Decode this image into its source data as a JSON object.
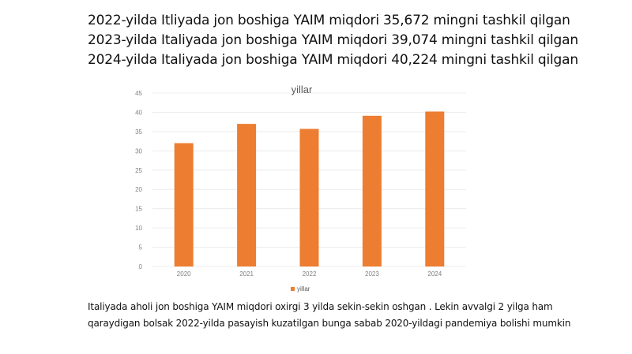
{
  "heading": {
    "line1": "2022-yilda Itliyada jon boshiga YAIM miqdori 35,672 mingni tashkil qilgan",
    "line2": "2023-yilda Italiyada jon boshiga YAIM miqdori 39,074 mingni tashkil qilgan",
    "line3": "2024-yilda Italiyada jon boshiga YAIM miqdori 40,224 mingni tashkil qilgan"
  },
  "chart_data": {
    "type": "bar",
    "title": "yillar",
    "categories": [
      "2020",
      "2021",
      "2022",
      "2023",
      "2024"
    ],
    "series": [
      {
        "name": "yillar",
        "values": [
          32.0,
          37.0,
          35.7,
          39.1,
          40.2
        ],
        "color": "#ed7d31"
      }
    ],
    "ylim": [
      0,
      45
    ],
    "yticks": [
      "0",
      "5",
      "10",
      "15",
      "20",
      "25",
      "30",
      "35",
      "40",
      "45"
    ],
    "grid": true,
    "legend": "bottom"
  },
  "note": {
    "line1": "Italiyada aholi jon boshiga YAIM miqdori oxirgi 3 yilda sekin-sekin oshgan . Lekin avvalgi 2 yilga ham",
    "line2": "qaraydigan bolsak 2022-yilda pasayish kuzatilgan bunga sabab 2020-yildagi pandemiya bolishi mumkin"
  }
}
